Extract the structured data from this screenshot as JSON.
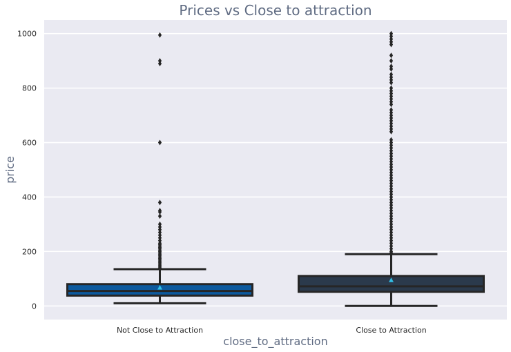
{
  "chart_data": {
    "type": "box",
    "title": "Prices vs Close to attraction",
    "xlabel": "close_to_attraction",
    "ylabel": "price",
    "categories": [
      "Not Close to Attraction",
      "Close to Attraction"
    ],
    "ylim": [
      -50,
      1050
    ],
    "yticks": [
      0,
      200,
      400,
      600,
      800,
      1000
    ],
    "grid": true,
    "background": "#eaeaf2",
    "boxes": [
      {
        "category": "Not Close to Attraction",
        "color": "#0d5a9e",
        "whisker_low": 10,
        "q1": 38,
        "median": 55,
        "q3": 80,
        "whisker_high": 135,
        "mean": 68,
        "outliers": [
          140,
          145,
          150,
          155,
          160,
          165,
          170,
          175,
          180,
          185,
          190,
          195,
          200,
          205,
          210,
          215,
          220,
          225,
          230,
          240,
          250,
          260,
          270,
          280,
          290,
          300,
          330,
          345,
          350,
          380,
          600,
          890,
          900,
          995
        ]
      },
      {
        "category": "Close to Attraction",
        "color": "#2b3a4c",
        "whisker_low": 0,
        "q1": 52,
        "median": 72,
        "q3": 110,
        "whisker_high": 190,
        "mean": 95,
        "outliers": [
          195,
          200,
          210,
          220,
          230,
          240,
          250,
          260,
          270,
          280,
          290,
          300,
          310,
          320,
          330,
          340,
          350,
          360,
          370,
          380,
          390,
          400,
          410,
          420,
          430,
          440,
          450,
          460,
          470,
          480,
          490,
          500,
          510,
          520,
          530,
          540,
          550,
          560,
          570,
          580,
          590,
          600,
          610,
          640,
          650,
          660,
          670,
          680,
          690,
          700,
          710,
          720,
          740,
          750,
          760,
          770,
          780,
          790,
          800,
          820,
          830,
          840,
          850,
          870,
          880,
          900,
          920,
          960,
          970,
          980,
          990,
          1000
        ]
      }
    ],
    "mean_color": "#33c0e6"
  }
}
